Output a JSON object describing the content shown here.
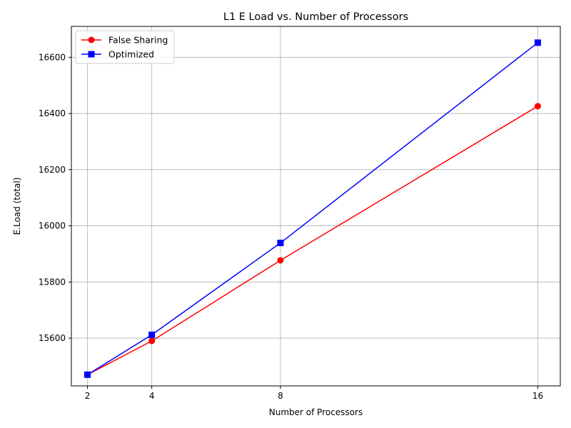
{
  "chart_data": {
    "type": "line",
    "title": "L1 E Load vs. Number of Processors",
    "xlabel": "Number of Processors",
    "ylabel": "E.Load (total)",
    "x": [
      2,
      4,
      8,
      16
    ],
    "xticks": [
      "2",
      "4",
      "8",
      "16"
    ],
    "xlim": [
      1.5,
      16.7
    ],
    "ylim": [
      15430,
      16710
    ],
    "yticks": [
      15600,
      15800,
      16000,
      16200,
      16400,
      16600
    ],
    "grid": true,
    "legend_position": "top-left",
    "series": [
      {
        "name": "False Sharing",
        "values": [
          15470,
          15590,
          15877,
          16426
        ],
        "color": "#ff0000",
        "marker": "circle"
      },
      {
        "name": "Optimized",
        "values": [
          15470,
          15612,
          15939,
          16652
        ],
        "color": "#0000ff",
        "marker": "square"
      }
    ]
  }
}
